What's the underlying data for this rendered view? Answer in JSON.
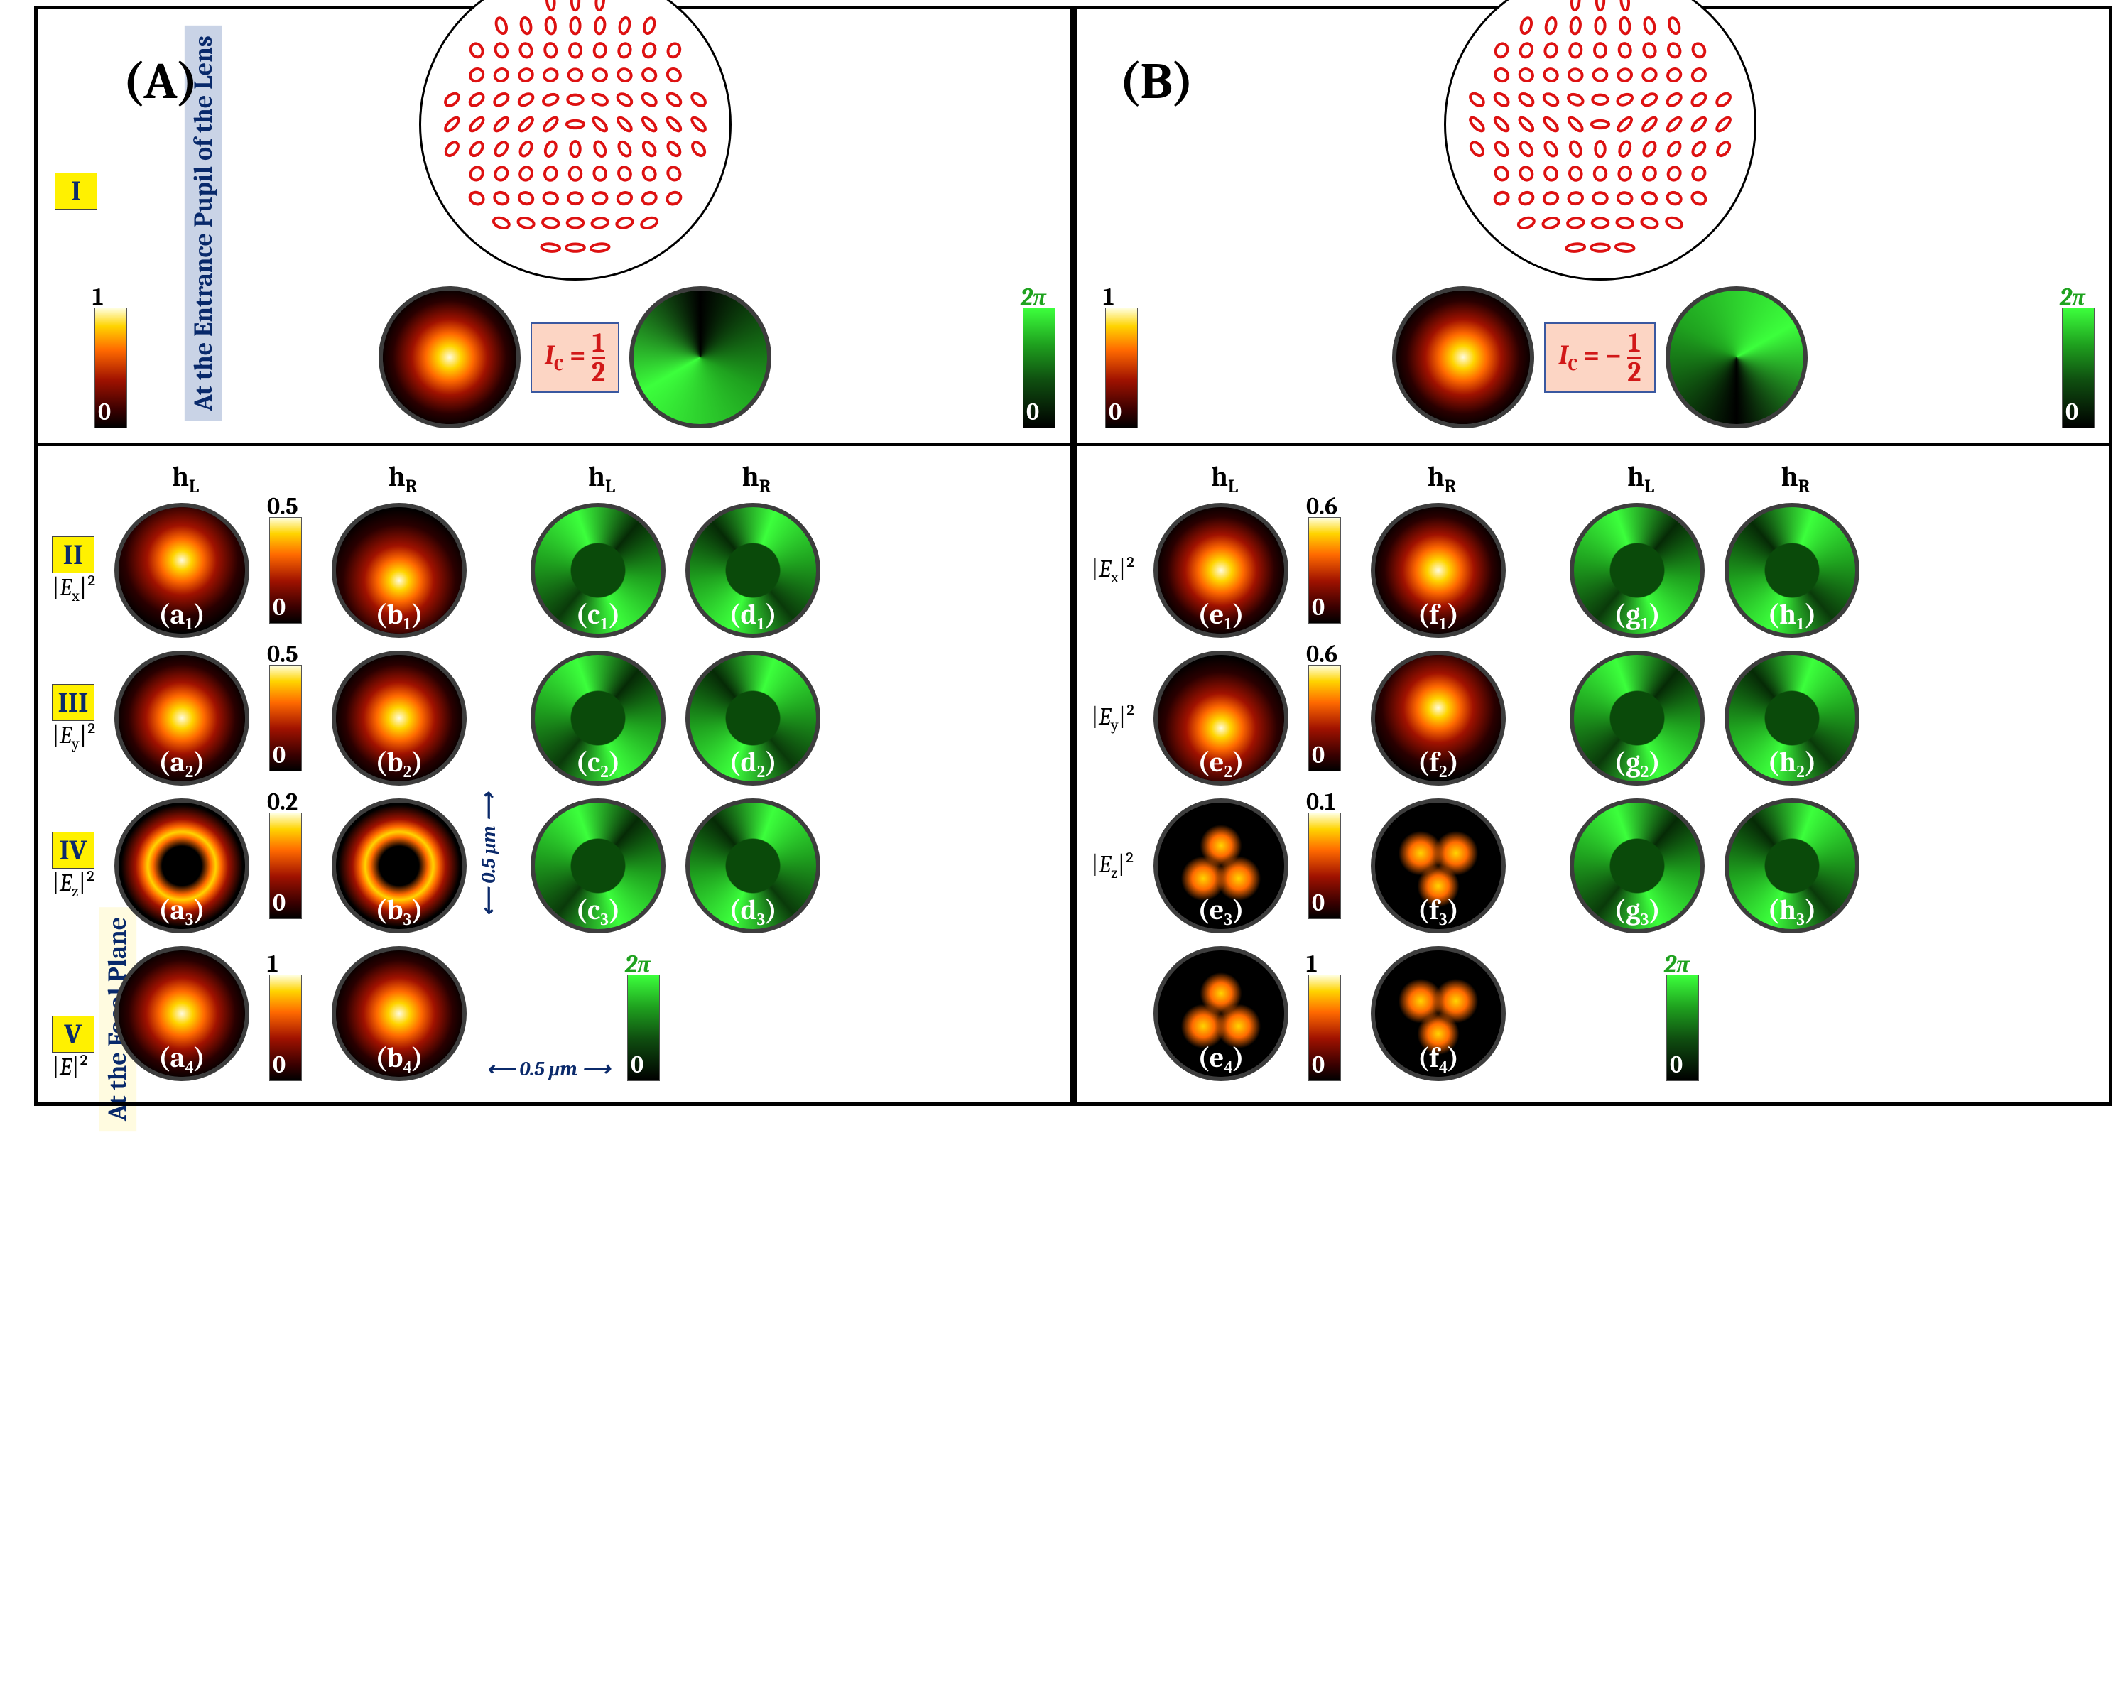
{
  "side_labels": {
    "top": "At the Entrance Pupil of the Lens",
    "bottom": "At the Focal Plane"
  },
  "panel_letters": {
    "A": "(A)",
    "B": "(B)"
  },
  "romans": [
    "I",
    "II",
    "III",
    "IV",
    "V"
  ],
  "Ic": {
    "A": {
      "pre": "I",
      "sub": "C",
      "eq": " = ",
      "num": "1",
      "den": "2"
    },
    "B": {
      "pre": "I",
      "sub": "C",
      "eq": " = −",
      "num": "1",
      "den": "2"
    }
  },
  "cbar": {
    "hot_top": "1",
    "hot_bot": "0",
    "grn_top": "2π",
    "grn_bot": "0"
  },
  "col_headers": [
    "h",
    "L",
    "h",
    "R",
    "h",
    "L",
    "h",
    "R"
  ],
  "row_components": [
    "|E_x|^2",
    "|E_y|^2",
    "|E_z|^2",
    "|E|^2"
  ],
  "row_cbar_max": {
    "A": [
      "0.5",
      "0.5",
      "0.2",
      "1"
    ],
    "B": [
      "0.6",
      "0.6",
      "0.1",
      "1"
    ]
  },
  "sublabels": {
    "A": [
      [
        "(a₁)",
        "(b₁)",
        "(c₁)",
        "(d₁)"
      ],
      [
        "(a₂)",
        "(b₂)",
        "(c₂)",
        "(d₂)"
      ],
      [
        "(a₃)",
        "(b₃)",
        "(c₃)",
        "(d₃)"
      ],
      [
        "(a₄)",
        "(b₄)"
      ]
    ],
    "B": [
      [
        "(e₁)",
        "(f₁)",
        "(g₁)",
        "(h₁)"
      ],
      [
        "(e₂)",
        "(f₂)",
        "(g₂)",
        "(h₂)"
      ],
      [
        "(e₃)",
        "(f₃)",
        "(g₃)",
        "(h₃)"
      ],
      [
        "(e₄)",
        "(f₄)"
      ]
    ]
  },
  "scale": {
    "x": "0.5 μm",
    "y": "0.5 μm"
  },
  "colors": {
    "roman_bg": "#fff100",
    "ic_bg": "#fcd5c4",
    "side_top_bg": "#c9d3e6",
    "side_bot_bg": "#fffbe0",
    "hot_stops": [
      "#000000",
      "#3a0000",
      "#a01200",
      "#ff6a00",
      "#ffd400",
      "#ffffe0"
    ],
    "grn_stops": [
      "#000000",
      "#0f4f10",
      "#1fa21f",
      "#3cff3c"
    ]
  },
  "pol_ellipse_grid": 11
}
